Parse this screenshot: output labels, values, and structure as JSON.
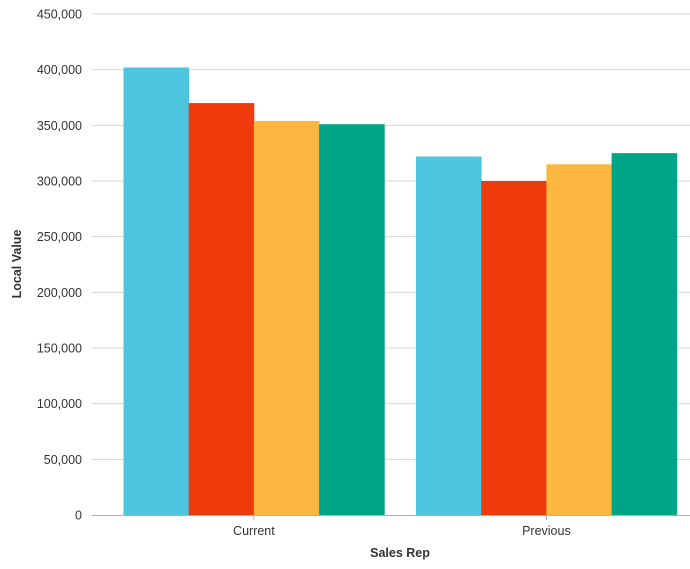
{
  "chart_data": {
    "type": "bar",
    "title": "",
    "xlabel": "Sales Rep",
    "ylabel": "Local Value",
    "categories": [
      "Current",
      "Previous"
    ],
    "series": [
      {
        "values": [
          402000,
          322000
        ],
        "color": "#4ec5df"
      },
      {
        "values": [
          370000,
          300000
        ],
        "color": "#ef3b0c"
      },
      {
        "values": [
          354000,
          315000
        ],
        "color": "#fbb740"
      },
      {
        "values": [
          351000,
          325000
        ],
        "color": "#00a586"
      }
    ],
    "ylim": [
      0,
      450000
    ],
    "yticks": [
      {
        "value": 0,
        "label": "0"
      },
      {
        "value": 50000,
        "label": "50,000"
      },
      {
        "value": 100000,
        "label": "100,000"
      },
      {
        "value": 150000,
        "label": "150,000"
      },
      {
        "value": 200000,
        "label": "200,000"
      },
      {
        "value": 250000,
        "label": "250,000"
      },
      {
        "value": 300000,
        "label": "300,000"
      },
      {
        "value": 350000,
        "label": "350,000"
      },
      {
        "value": 400000,
        "label": "400,000"
      },
      {
        "value": 450000,
        "label": "450,000"
      }
    ],
    "grid": true,
    "legend": "none"
  }
}
